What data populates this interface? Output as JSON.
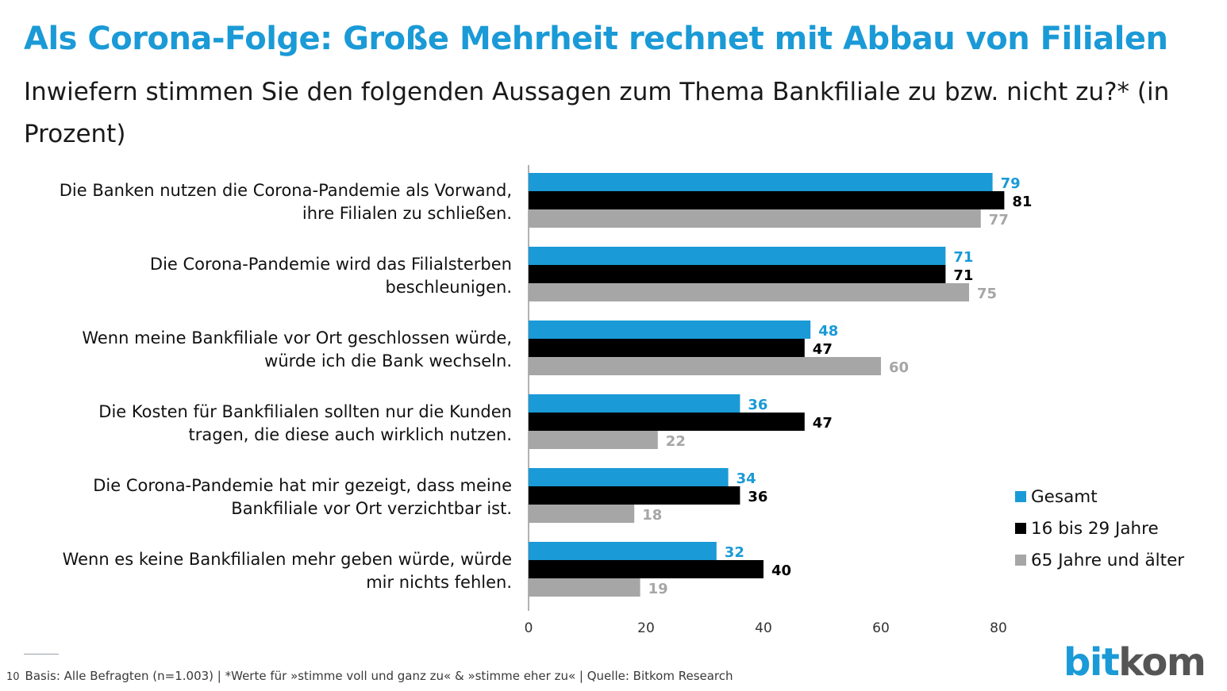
{
  "header": {
    "title": "Als Corona-Folge: Große Mehrheit rechnet mit Abbau von Filialen",
    "subtitle": "Inwiefern stimmen Sie den folgenden Aussagen zum Thema Bankfiliale zu bzw. nicht zu?* (in Prozent)"
  },
  "chart_data": {
    "type": "bar",
    "orientation": "horizontal",
    "title": "",
    "xlabel": "",
    "ylabel": "",
    "xlim": [
      0,
      80
    ],
    "xticks": [
      0,
      20,
      40,
      60,
      80
    ],
    "grid": false,
    "legend_position": "right",
    "categories": [
      "Die Banken nutzen die Corona-Pandemie als Vorwand, ihre Filialen zu schließen.",
      "Die Corona-Pandemie wird das Filialsterben beschleunigen.",
      "Wenn meine Bankfiliale vor Ort geschlossen würde, würde ich die Bank wechseln.",
      "Die Kosten für Bankfilialen sollten nur die Kunden tragen, die diese auch wirklich nutzen.",
      "Die Corona-Pandemie hat mir gezeigt, dass meine Bankfiliale vor Ort verzichtbar ist.",
      "Wenn es keine Bankfilialen mehr geben würde, würde mir nichts fehlen."
    ],
    "category_lines": [
      [
        "Die Banken nutzen die Corona-Pandemie als Vorwand,",
        "ihre Filialen zu schließen."
      ],
      [
        "Die Corona-Pandemie wird das Filialsterben",
        "beschleunigen."
      ],
      [
        "Wenn meine Bankfiliale vor Ort geschlossen würde,",
        "würde ich die Bank wechseln."
      ],
      [
        "Die Kosten für Bankfilialen sollten nur die Kunden",
        "tragen, die diese auch wirklich nutzen."
      ],
      [
        "Die Corona-Pandemie hat mir gezeigt, dass meine",
        "Bankfiliale vor Ort verzichtbar ist."
      ],
      [
        "Wenn es keine Bankfilialen mehr geben würde, würde",
        "mir nichts fehlen."
      ]
    ],
    "series": [
      {
        "name": "Gesamt",
        "color": "#1a9ad6",
        "label_color": "#1a9ad6",
        "values": [
          79,
          71,
          48,
          36,
          34,
          32
        ]
      },
      {
        "name": "16 bis 29 Jahre",
        "color": "#000000",
        "label_color": "#000000",
        "values": [
          81,
          71,
          47,
          47,
          36,
          40
        ]
      },
      {
        "name": "65 Jahre und älter",
        "color": "#a6a6a6",
        "label_color": "#a6a6a6",
        "values": [
          77,
          75,
          60,
          22,
          18,
          19
        ]
      }
    ]
  },
  "footer": {
    "page_number": "10",
    "text": "Basis: Alle Befragten (n=1.003) | *Werte für »stimme voll und ganz zu« & »stimme eher zu« |  Quelle: Bitkom Research"
  },
  "logo": {
    "part1": "bit",
    "part2": "kom",
    "color1": "#1a9ad6",
    "color2": "#555555"
  }
}
